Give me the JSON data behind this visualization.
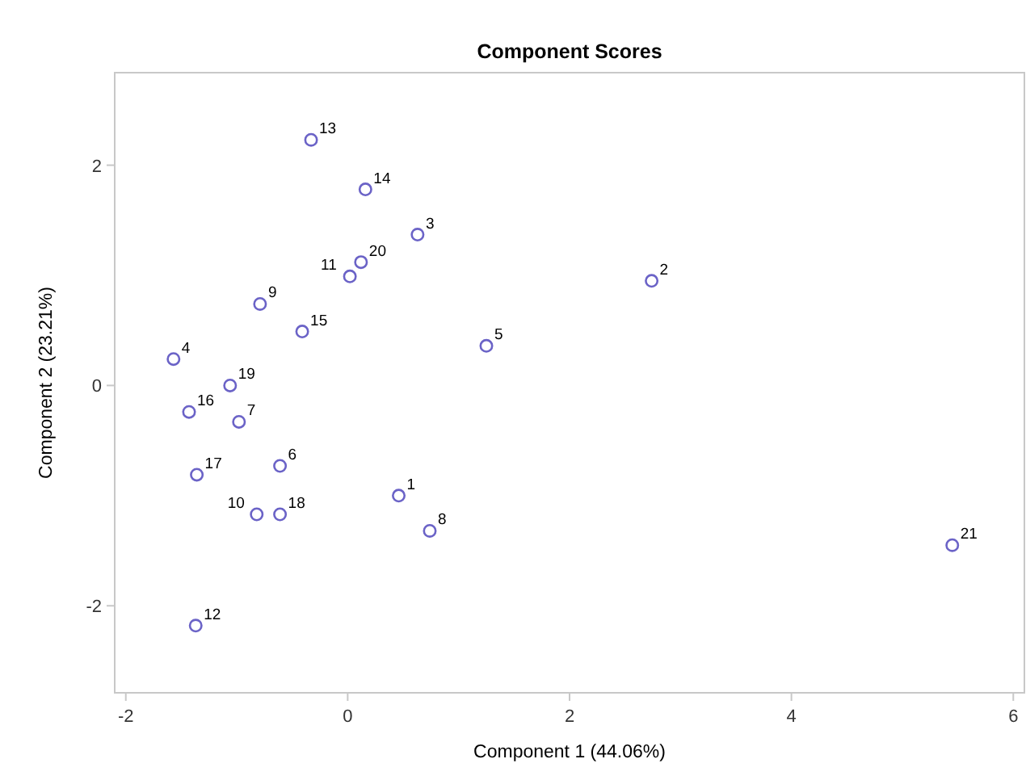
{
  "chart_data": {
    "type": "scatter",
    "title": "Component Scores",
    "xlabel": "Component 1 (44.06%)",
    "ylabel": "Component 2 (23.21%)",
    "xlim": [
      -2.1,
      6.1
    ],
    "ylim": [
      -2.79,
      2.84
    ],
    "xticks": [
      -2,
      0,
      2,
      4,
      6
    ],
    "yticks": [
      -2,
      0,
      2
    ],
    "grid": false,
    "marker": "circle",
    "x": [
      0.46,
      2.74,
      0.63,
      -1.57,
      1.25,
      -0.61,
      -0.98,
      0.74,
      -0.79,
      -0.82,
      0.02,
      -1.37,
      -0.33,
      0.16,
      -0.41,
      -1.43,
      -1.36,
      -0.61,
      -1.06,
      0.12,
      5.45
    ],
    "series": [
      {
        "color": "#6b63c7",
        "values": [
          -1.0,
          0.95,
          1.37,
          0.24,
          0.36,
          -0.73,
          -0.33,
          -1.32,
          0.74,
          -1.17,
          0.99,
          -2.18,
          2.23,
          1.78,
          0.49,
          -0.24,
          -0.81,
          -1.17,
          0.0,
          1.12,
          -1.45
        ]
      }
    ],
    "annotations": [
      {
        "text": "1",
        "x": 0.46,
        "y": -1.0
      },
      {
        "text": "2",
        "x": 2.74,
        "y": 0.95
      },
      {
        "text": "3",
        "x": 0.63,
        "y": 1.37
      },
      {
        "text": "4",
        "x": -1.57,
        "y": 0.24
      },
      {
        "text": "5",
        "x": 1.25,
        "y": 0.36
      },
      {
        "text": "6",
        "x": -0.61,
        "y": -0.73
      },
      {
        "text": "7",
        "x": -0.98,
        "y": -0.33
      },
      {
        "text": "8",
        "x": 0.74,
        "y": -1.32
      },
      {
        "text": "9",
        "x": -0.79,
        "y": 0.74
      },
      {
        "text": "10",
        "x": -0.82,
        "y": -1.17
      },
      {
        "text": "11",
        "x": 0.02,
        "y": 0.99
      },
      {
        "text": "12",
        "x": -1.37,
        "y": -2.18
      },
      {
        "text": "13",
        "x": -0.33,
        "y": 2.23
      },
      {
        "text": "14",
        "x": 0.16,
        "y": 1.78
      },
      {
        "text": "15",
        "x": -0.41,
        "y": 0.49
      },
      {
        "text": "16",
        "x": -1.43,
        "y": -0.24
      },
      {
        "text": "17",
        "x": -1.36,
        "y": -0.81
      },
      {
        "text": "18",
        "x": -0.61,
        "y": -1.17
      },
      {
        "text": "19",
        "x": -1.06,
        "y": 0.0
      },
      {
        "text": "20",
        "x": 0.12,
        "y": 1.12
      },
      {
        "text": "21",
        "x": 5.45,
        "y": -1.45
      }
    ]
  }
}
